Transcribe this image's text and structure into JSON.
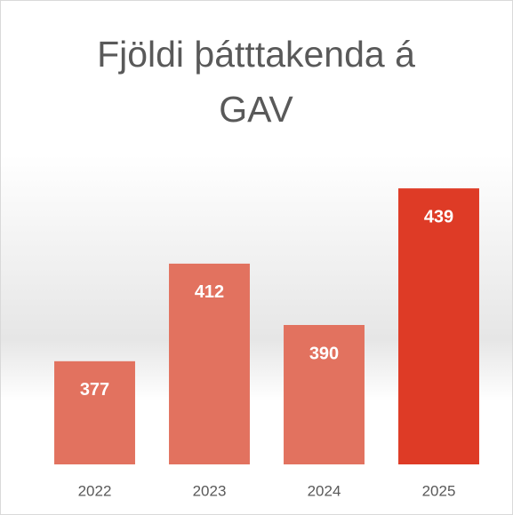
{
  "chart_data": {
    "type": "bar",
    "title": "Fjöldi þátttakenda á GAV",
    "categories": [
      "2022",
      "2023",
      "2024",
      "2025"
    ],
    "values": [
      377,
      412,
      390,
      439
    ],
    "colors": [
      "#e2725f",
      "#e2725f",
      "#e2725f",
      "#de3b26"
    ],
    "ylim": [
      340,
      450
    ]
  }
}
